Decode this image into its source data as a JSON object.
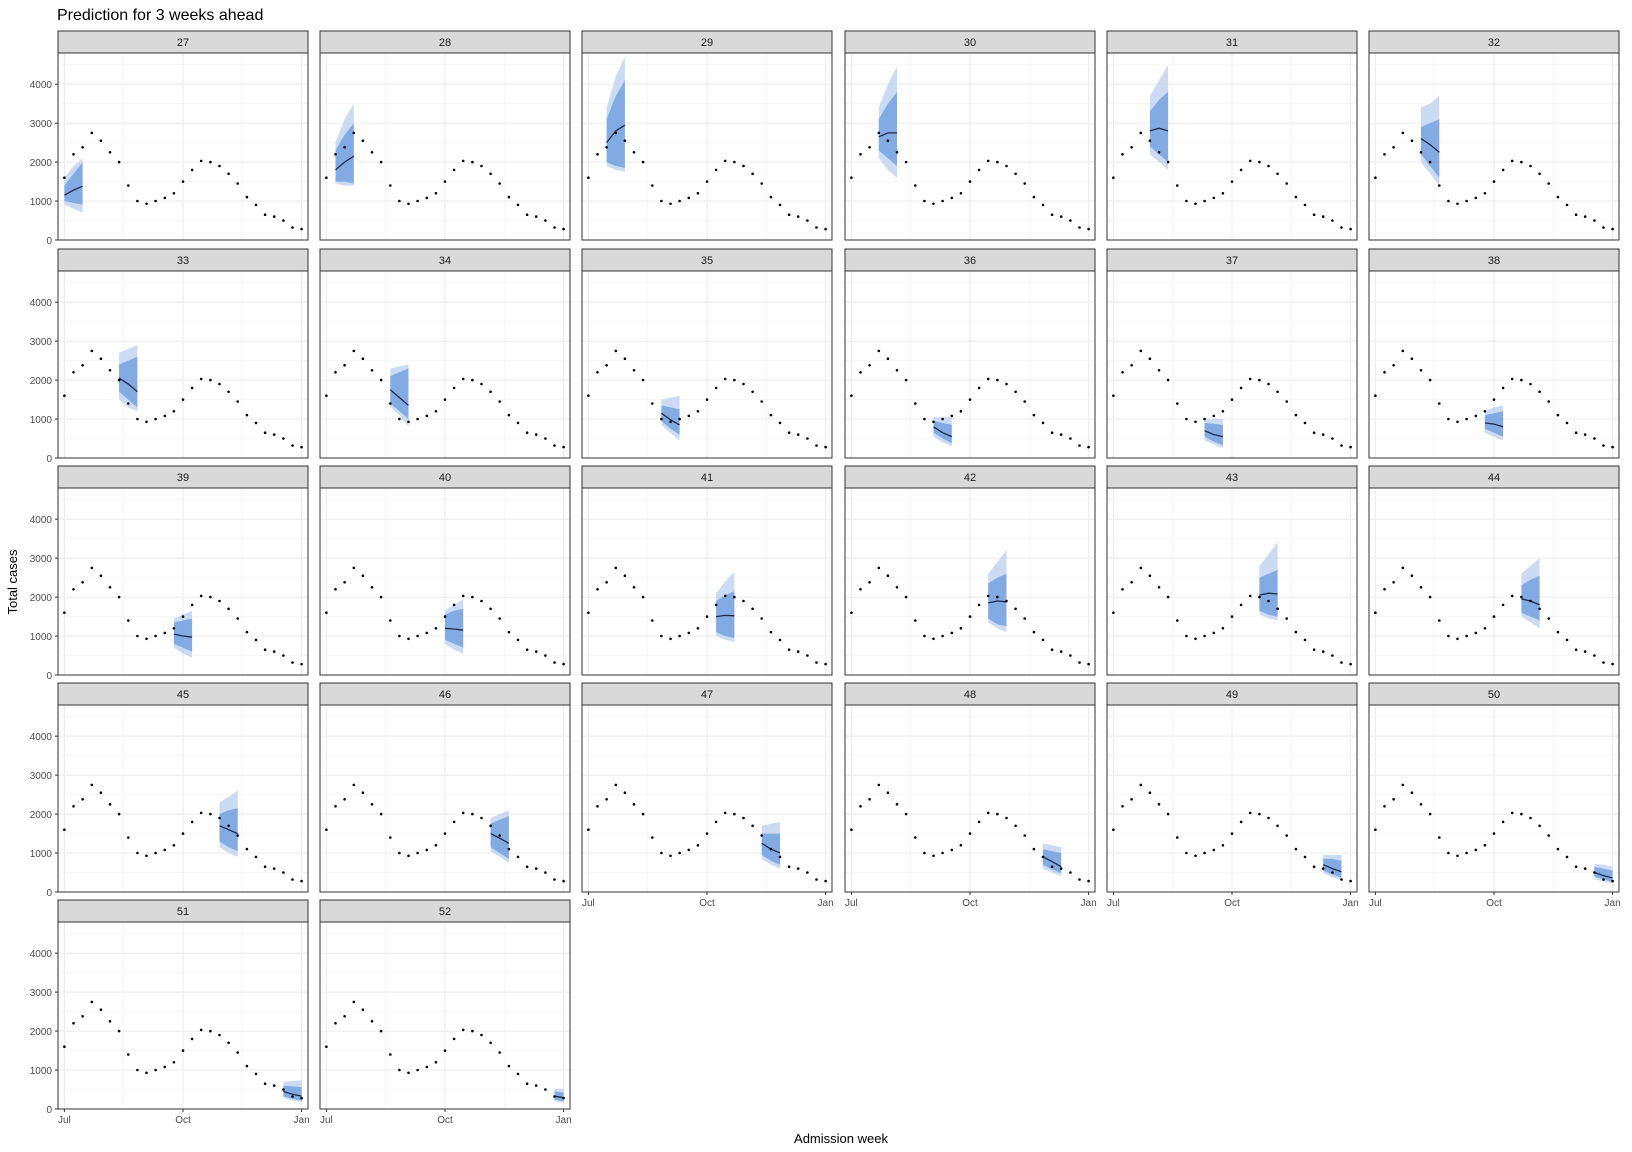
{
  "chart_data": {
    "type": "line",
    "title": "Prediction for 3 weeks ahead",
    "xlabel": "Admission week",
    "ylabel": "Total cases",
    "x_ticks": [
      "Jul",
      "Oct",
      "Jan"
    ],
    "y_ticks": [
      0,
      1000,
      2000,
      3000,
      4000
    ],
    "ylim": [
      0,
      4800
    ],
    "grid": true,
    "facet_labels": [
      "27",
      "28",
      "29",
      "30",
      "31",
      "32",
      "33",
      "34",
      "35",
      "36",
      "37",
      "38",
      "39",
      "40",
      "41",
      "42",
      "43",
      "44",
      "45",
      "46",
      "47",
      "48",
      "49",
      "50",
      "51",
      "52"
    ],
    "observed": {
      "x": [
        0,
        1,
        2,
        3,
        4,
        5,
        6,
        7,
        8,
        9,
        10,
        11,
        12,
        13,
        14,
        15,
        16,
        17,
        18,
        19,
        20,
        21,
        22,
        23,
        24,
        25,
        26
      ],
      "y": [
        1600,
        2200,
        2380,
        2750,
        2550,
        2250,
        2000,
        1400,
        1000,
        930,
        1000,
        1080,
        1200,
        1500,
        1800,
        2030,
        2000,
        1900,
        1700,
        1450,
        1100,
        900,
        650,
        600,
        500,
        320,
        280
      ]
    },
    "predictions": [
      {
        "facet": "27",
        "x": [
          0,
          1,
          2
        ],
        "median": [
          1150,
          1280,
          1380
        ],
        "inner": [
          [
            1000,
            1400
          ],
          [
            950,
            1700
          ],
          [
            900,
            2000
          ]
        ],
        "outer": [
          [
            900,
            1600
          ],
          [
            800,
            1900
          ],
          [
            700,
            2100
          ]
        ]
      },
      {
        "facet": "28",
        "x": [
          1,
          2,
          3
        ],
        "median": [
          1800,
          2000,
          2150
        ],
        "inner": [
          [
            1500,
            2300
          ],
          [
            1500,
            2700
          ],
          [
            1450,
            3000
          ]
        ],
        "outer": [
          [
            1450,
            2500
          ],
          [
            1400,
            3100
          ],
          [
            1400,
            3500
          ]
        ]
      },
      {
        "facet": "29",
        "x": [
          2,
          3,
          4
        ],
        "median": [
          2500,
          2800,
          2950
        ],
        "inner": [
          [
            2000,
            3100
          ],
          [
            1900,
            3700
          ],
          [
            1850,
            4100
          ]
        ],
        "outer": [
          [
            1900,
            3400
          ],
          [
            1800,
            4200
          ],
          [
            1750,
            4700
          ]
        ]
      },
      {
        "facet": "30",
        "x": [
          3,
          4,
          5
        ],
        "median": [
          2650,
          2750,
          2750
        ],
        "inner": [
          [
            2300,
            3100
          ],
          [
            2100,
            3500
          ],
          [
            1900,
            3800
          ]
        ],
        "outer": [
          [
            2100,
            3400
          ],
          [
            1800,
            4000
          ],
          [
            1600,
            4450
          ]
        ]
      },
      {
        "facet": "31",
        "x": [
          4,
          5,
          6
        ],
        "median": [
          2800,
          2870,
          2800
        ],
        "inner": [
          [
            2400,
            3300
          ],
          [
            2200,
            3600
          ],
          [
            2000,
            3800
          ]
        ],
        "outer": [
          [
            2200,
            3700
          ],
          [
            2000,
            4100
          ],
          [
            1800,
            4500
          ]
        ]
      },
      {
        "facet": "32",
        "x": [
          5,
          6,
          7
        ],
        "median": [
          2600,
          2450,
          2250
        ],
        "inner": [
          [
            2200,
            2900
          ],
          [
            1900,
            3000
          ],
          [
            1600,
            3100
          ]
        ],
        "outer": [
          [
            2000,
            3400
          ],
          [
            1700,
            3500
          ],
          [
            1400,
            3700
          ]
        ]
      },
      {
        "facet": "33",
        "x": [
          6,
          7,
          8
        ],
        "median": [
          2050,
          1900,
          1700
        ],
        "inner": [
          [
            1700,
            2400
          ],
          [
            1500,
            2500
          ],
          [
            1300,
            2600
          ]
        ],
        "outer": [
          [
            1500,
            2700
          ],
          [
            1300,
            2800
          ],
          [
            1200,
            2900
          ]
        ]
      },
      {
        "facet": "34",
        "x": [
          7,
          8,
          9
        ],
        "median": [
          1750,
          1550,
          1350
        ],
        "inner": [
          [
            1400,
            2100
          ],
          [
            1200,
            2200
          ],
          [
            1000,
            2300
          ]
        ],
        "outer": [
          [
            1300,
            2300
          ],
          [
            1100,
            2350
          ],
          [
            800,
            2400
          ]
        ]
      },
      {
        "facet": "35",
        "x": [
          8,
          9,
          10
        ],
        "median": [
          1150,
          980,
          850
        ],
        "inner": [
          [
            950,
            1350
          ],
          [
            750,
            1300
          ],
          [
            600,
            1250
          ]
        ],
        "outer": [
          [
            850,
            1500
          ],
          [
            650,
            1550
          ],
          [
            450,
            1600
          ]
        ]
      },
      {
        "facet": "36",
        "x": [
          9,
          10,
          11
        ],
        "median": [
          800,
          650,
          550
        ],
        "inner": [
          [
            650,
            950
          ],
          [
            500,
            900
          ],
          [
            380,
            850
          ]
        ],
        "outer": [
          [
            550,
            1050
          ],
          [
            400,
            1050
          ],
          [
            300,
            1050
          ]
        ]
      },
      {
        "facet": "37",
        "x": [
          10,
          11,
          12
        ],
        "median": [
          700,
          600,
          550
        ],
        "inner": [
          [
            550,
            900
          ],
          [
            420,
            880
          ],
          [
            330,
            850
          ]
        ],
        "outer": [
          [
            450,
            1000
          ],
          [
            350,
            1000
          ],
          [
            250,
            1000
          ]
        ]
      },
      {
        "facet": "38",
        "x": [
          12,
          13,
          14
        ],
        "median": [
          900,
          870,
          800
        ],
        "inner": [
          [
            750,
            1100
          ],
          [
            650,
            1150
          ],
          [
            550,
            1200
          ]
        ],
        "outer": [
          [
            650,
            1200
          ],
          [
            550,
            1300
          ],
          [
            450,
            1350
          ]
        ]
      },
      {
        "facet": "39",
        "x": [
          12,
          13,
          14
        ],
        "median": [
          1050,
          1000,
          970
        ],
        "inner": [
          [
            800,
            1350
          ],
          [
            700,
            1400
          ],
          [
            600,
            1450
          ]
        ],
        "outer": [
          [
            700,
            1450
          ],
          [
            550,
            1550
          ],
          [
            450,
            1650
          ]
        ]
      },
      {
        "facet": "40",
        "x": [
          13,
          14,
          15
        ],
        "median": [
          1200,
          1180,
          1150
        ],
        "inner": [
          [
            900,
            1550
          ],
          [
            800,
            1650
          ],
          [
            700,
            1700
          ]
        ],
        "outer": [
          [
            800,
            1650
          ],
          [
            650,
            1800
          ],
          [
            550,
            1950
          ]
        ]
      },
      {
        "facet": "41",
        "x": [
          14,
          15,
          16
        ],
        "median": [
          1500,
          1530,
          1520
        ],
        "inner": [
          [
            1100,
            1900
          ],
          [
            1000,
            2050
          ],
          [
            950,
            2150
          ]
        ],
        "outer": [
          [
            1000,
            2100
          ],
          [
            900,
            2400
          ],
          [
            850,
            2650
          ]
        ]
      },
      {
        "facet": "42",
        "x": [
          15,
          16,
          17
        ],
        "median": [
          1850,
          1900,
          1880
        ],
        "inner": [
          [
            1450,
            2350
          ],
          [
            1300,
            2500
          ],
          [
            1250,
            2600
          ]
        ],
        "outer": [
          [
            1350,
            2600
          ],
          [
            1200,
            2900
          ],
          [
            1100,
            3200
          ]
        ]
      },
      {
        "facet": "43",
        "x": [
          16,
          17,
          18
        ],
        "median": [
          2050,
          2100,
          2080
        ],
        "inner": [
          [
            1650,
            2500
          ],
          [
            1550,
            2600
          ],
          [
            1500,
            2700
          ]
        ],
        "outer": [
          [
            1550,
            2800
          ],
          [
            1450,
            3100
          ],
          [
            1400,
            3400
          ]
        ]
      },
      {
        "facet": "44",
        "x": [
          16,
          17,
          18
        ],
        "median": [
          1950,
          1900,
          1800
        ],
        "inner": [
          [
            1600,
            2300
          ],
          [
            1500,
            2450
          ],
          [
            1400,
            2550
          ]
        ],
        "outer": [
          [
            1500,
            2600
          ],
          [
            1350,
            2800
          ],
          [
            1200,
            3000
          ]
        ]
      },
      {
        "facet": "45",
        "x": [
          17,
          18,
          19
        ],
        "median": [
          1700,
          1600,
          1500
        ],
        "inner": [
          [
            1300,
            2000
          ],
          [
            1150,
            2100
          ],
          [
            1050,
            2150
          ]
        ],
        "outer": [
          [
            1150,
            2300
          ],
          [
            1000,
            2450
          ],
          [
            900,
            2600
          ]
        ]
      },
      {
        "facet": "46",
        "x": [
          18,
          19,
          20
        ],
        "median": [
          1500,
          1380,
          1250
        ],
        "inner": [
          [
            1150,
            1750
          ],
          [
            1000,
            1850
          ],
          [
            850,
            1950
          ]
        ],
        "outer": [
          [
            1050,
            1900
          ],
          [
            900,
            2000
          ],
          [
            750,
            2100
          ]
        ]
      },
      {
        "facet": "47",
        "x": [
          19,
          20,
          21
        ],
        "median": [
          1250,
          1100,
          1000
        ],
        "inner": [
          [
            950,
            1500
          ],
          [
            800,
            1500
          ],
          [
            700,
            1500
          ]
        ],
        "outer": [
          [
            850,
            1700
          ],
          [
            700,
            1750
          ],
          [
            600,
            1800
          ]
        ]
      },
      {
        "facet": "48",
        "x": [
          21,
          22,
          23
        ],
        "median": [
          900,
          780,
          650
        ],
        "inner": [
          [
            700,
            1100
          ],
          [
            580,
            1050
          ],
          [
            480,
            1000
          ]
        ],
        "outer": [
          [
            600,
            1250
          ],
          [
            500,
            1200
          ],
          [
            400,
            1150
          ]
        ]
      },
      {
        "facet": "49",
        "x": [
          23,
          24,
          25
        ],
        "median": [
          700,
          600,
          520
        ],
        "inner": [
          [
            550,
            850
          ],
          [
            450,
            850
          ],
          [
            370,
            800
          ]
        ],
        "outer": [
          [
            480,
            950
          ],
          [
            380,
            950
          ],
          [
            300,
            950
          ]
        ]
      },
      {
        "facet": "50",
        "x": [
          24,
          25,
          26
        ],
        "median": [
          500,
          420,
          360
        ],
        "inner": [
          [
            400,
            650
          ],
          [
            320,
            600
          ],
          [
            260,
            550
          ]
        ],
        "outer": [
          [
            330,
            720
          ],
          [
            270,
            700
          ],
          [
            220,
            650
          ]
        ]
      },
      {
        "facet": "51",
        "x": [
          24,
          25,
          26
        ],
        "median": [
          450,
          380,
          330
        ],
        "inner": [
          [
            330,
            600
          ],
          [
            260,
            580
          ],
          [
            210,
            560
          ]
        ],
        "outer": [
          [
            280,
            700
          ],
          [
            220,
            720
          ],
          [
            180,
            740
          ]
        ]
      },
      {
        "facet": "52",
        "x": [
          25,
          26
        ],
        "median": [
          330,
          290
        ],
        "inner": [
          [
            240,
            450
          ],
          [
            200,
            420
          ]
        ],
        "outer": [
          [
            200,
            520
          ],
          [
            160,
            520
          ]
        ]
      }
    ],
    "colors": {
      "point": "#000000",
      "median_line": "#1a2b4a",
      "inner_band": "#6b9bdd",
      "outer_band": "#b9cff0",
      "strip_fill": "#d9d9d9",
      "grid": "#ebebeb"
    }
  }
}
